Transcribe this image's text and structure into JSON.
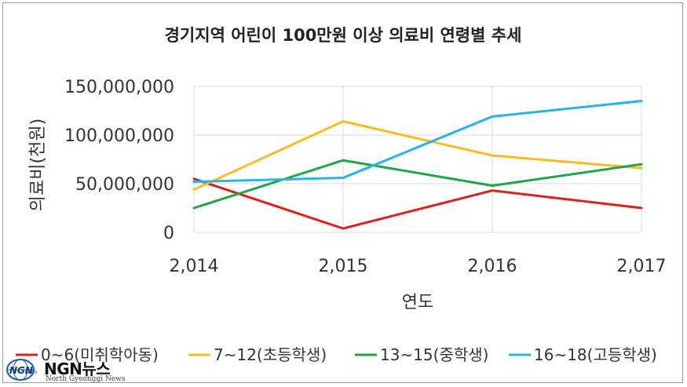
{
  "chart_data": {
    "type": "line",
    "title": "경기지역 어린이 100만원 이상 의료비  연령별 추세",
    "xlabel": "연도",
    "ylabel": "의료비(천원)",
    "x": [
      "2,014",
      "2,015",
      "2,016",
      "2,017"
    ],
    "yticks": [
      "0",
      "50,000,000",
      "100,000,000",
      "150,000,000"
    ],
    "ylim": [
      0,
      150000000
    ],
    "grid": true,
    "legend_position": "bottom",
    "series": [
      {
        "name": "0~6(미취학아동)",
        "color": "#e02020",
        "values": [
          55000000,
          4000000,
          43000000,
          25000000
        ]
      },
      {
        "name": "7~12(초등학생)",
        "color": "#f5be1c",
        "values": [
          44000000,
          114000000,
          79000000,
          66000000
        ]
      },
      {
        "name": "13~15(중학생)",
        "color": "#1fa64a",
        "values": [
          25000000,
          74000000,
          48000000,
          70000000
        ]
      },
      {
        "name": "16~18(고등학생)",
        "color": "#29b3ea",
        "values": [
          52000000,
          56000000,
          119000000,
          135000000
        ]
      }
    ]
  },
  "watermark": {
    "logo_text": "NGN",
    "logo_sub": "NEWS",
    "brand": "NGN뉴스",
    "subtitle": "North Gyeonggi News"
  }
}
